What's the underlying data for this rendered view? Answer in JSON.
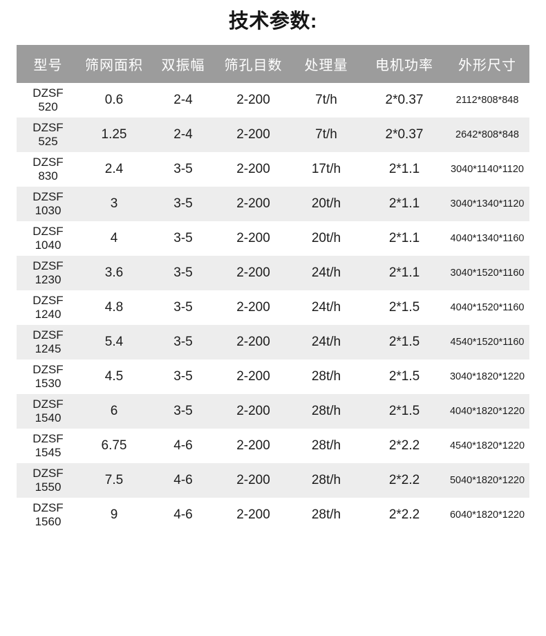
{
  "page": {
    "title": "技术参数:"
  },
  "colors": {
    "header_bg": "#9c9c9c",
    "header_text": "#ffffff",
    "row_alt_bg": "#ededed",
    "body_text": "#1c1c1c"
  },
  "table": {
    "headers": [
      "型号",
      "筛网面积",
      "双振幅",
      "筛孔目数",
      "处理量",
      "电机功率",
      "外形尺寸"
    ],
    "rows": [
      [
        "DZSF\n520",
        "0.6",
        "2-4",
        "2-200",
        "7t/h",
        "2*0.37",
        "2112*808*848"
      ],
      [
        "DZSF\n525",
        "1.25",
        "2-4",
        "2-200",
        "7t/h",
        "2*0.37",
        "2642*808*848"
      ],
      [
        "DZSF\n830",
        "2.4",
        "3-5",
        "2-200",
        "17t/h",
        "2*1.1",
        "3040*1140*1120"
      ],
      [
        "DZSF\n1030",
        "3",
        "3-5",
        "2-200",
        "20t/h",
        "2*1.1",
        "3040*1340*1120"
      ],
      [
        "DZSF\n1040",
        "4",
        "3-5",
        "2-200",
        "20t/h",
        "2*1.1",
        "4040*1340*1160"
      ],
      [
        "DZSF\n1230",
        "3.6",
        "3-5",
        "2-200",
        "24t/h",
        "2*1.1",
        "3040*1520*1160"
      ],
      [
        "DZSF\n1240",
        "4.8",
        "3-5",
        "2-200",
        "24t/h",
        "2*1.5",
        "4040*1520*1160"
      ],
      [
        "DZSF\n1245",
        "5.4",
        "3-5",
        "2-200",
        "24t/h",
        "2*1.5",
        "4540*1520*1160"
      ],
      [
        "DZSF\n1530",
        "4.5",
        "3-5",
        "2-200",
        "28t/h",
        "2*1.5",
        "3040*1820*1220"
      ],
      [
        "DZSF\n1540",
        "6",
        "3-5",
        "2-200",
        "28t/h",
        "2*1.5",
        "4040*1820*1220"
      ],
      [
        "DZSF\n1545",
        "6.75",
        "4-6",
        "2-200",
        "28t/h",
        "2*2.2",
        "4540*1820*1220"
      ],
      [
        "DZSF\n1550",
        "7.5",
        "4-6",
        "2-200",
        "28t/h",
        "2*2.2",
        "5040*1820*1220"
      ],
      [
        "DZSF\n1560",
        "9",
        "4-6",
        "2-200",
        "28t/h",
        "2*2.2",
        "6040*1820*1220"
      ]
    ]
  }
}
